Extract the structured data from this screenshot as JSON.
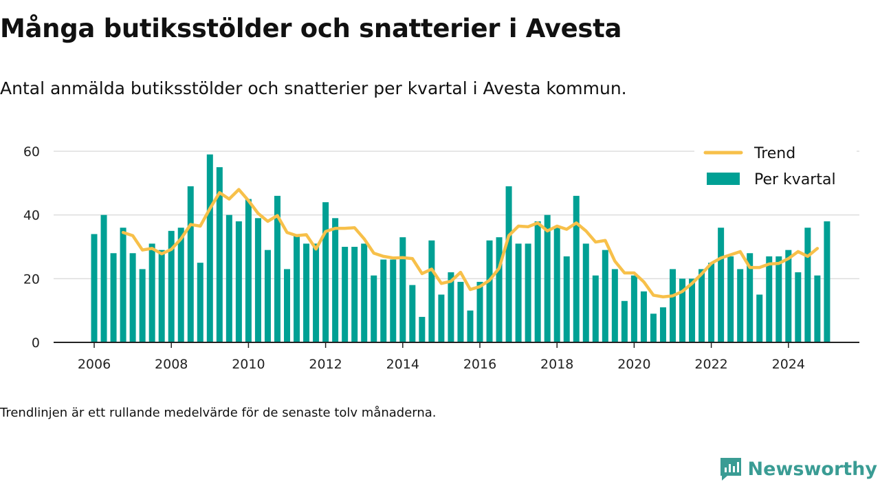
{
  "header": {
    "title": "Många butiksstölder och snatterier i Avesta",
    "subtitle": "Antal anmälda butiksstölder och snatterier per kvartal i Avesta kommun."
  },
  "footer": {
    "note": "Trendlinjen är ett rullande medelvärde för de senaste tolv månaderna.",
    "brand": "Newsworthy"
  },
  "colors": {
    "bars": "#00a094",
    "trend": "#f7c04a",
    "grid": "#dddddd",
    "axis": "#222222",
    "brand": "#3a9c94"
  },
  "chart_data": {
    "type": "bar",
    "title": "",
    "xlabel": "",
    "ylabel": "",
    "ylim": [
      0,
      60
    ],
    "yticks": [
      0,
      20,
      40,
      60
    ],
    "xticks": [
      "2006",
      "2008",
      "2010",
      "2012",
      "2014",
      "2016",
      "2018",
      "2020",
      "2022",
      "2024"
    ],
    "grid": true,
    "legend_position": "top-right",
    "start_year": 2006,
    "series": [
      {
        "name": "Per kvartal",
        "type": "bar",
        "values": [
          34,
          40,
          28,
          36,
          28,
          23,
          31,
          29,
          35,
          36,
          49,
          25,
          59,
          55,
          40,
          38,
          45,
          39,
          29,
          46,
          23,
          34,
          31,
          31,
          44,
          39,
          30,
          30,
          31,
          21,
          26,
          26,
          33,
          18,
          8,
          32,
          15,
          22,
          19,
          10,
          19,
          32,
          33,
          49,
          31,
          31,
          38,
          40,
          36,
          27,
          46,
          31,
          21,
          29,
          23,
          13,
          21,
          16,
          9,
          11,
          23,
          20,
          20,
          23,
          25,
          36,
          27,
          23,
          28,
          15,
          27,
          27,
          29,
          22,
          36,
          21,
          38
        ]
      },
      {
        "name": "Trend",
        "type": "line",
        "start_index": 3,
        "values": [
          34.5,
          33.5,
          29,
          29.5,
          27.8,
          29.2,
          32.5,
          37,
          36.5,
          42,
          47,
          45,
          48,
          44.5,
          40.5,
          38,
          39.8,
          34.5,
          33.5,
          33.8,
          29.3,
          34.8,
          35.8,
          35.8,
          36,
          32.5,
          28,
          27,
          26.5,
          26.6,
          26.3,
          21.6,
          23,
          18.5,
          19.2,
          22,
          16.6,
          17.5,
          19.5,
          23.3,
          33.5,
          36.5,
          36.3,
          37.5,
          35,
          36.5,
          35.5,
          37.5,
          35,
          31.5,
          32,
          25.5,
          21.8,
          21.8,
          19,
          14.8,
          14.3,
          14.6,
          16,
          18.5,
          21.5,
          24.8,
          26.5,
          27.5,
          28.5,
          23.5,
          23.5,
          24.6,
          24.8,
          26.3,
          28.5,
          27,
          29.5
        ]
      }
    ]
  }
}
